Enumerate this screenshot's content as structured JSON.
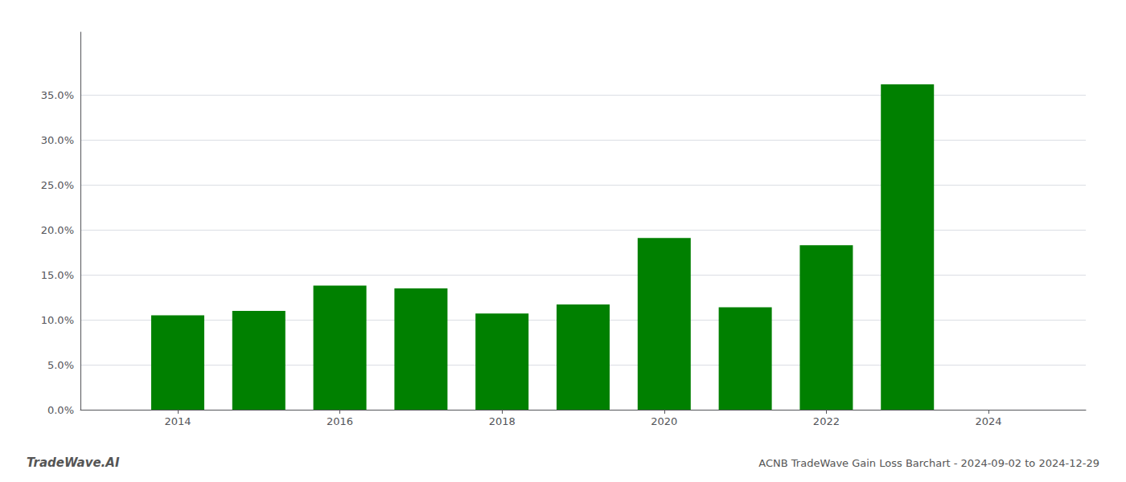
{
  "chart_data": {
    "type": "bar",
    "title": "ACNB TradeWave Gain Loss Barchart - 2024-09-02 to 2024-12-29",
    "annotations": [
      "TradeWave.AI"
    ],
    "x": [
      2014,
      2015,
      2016,
      2017,
      2018,
      2019,
      2020,
      2021,
      2022,
      2023
    ],
    "values": [
      0.105,
      0.11,
      0.138,
      0.135,
      0.107,
      0.117,
      0.191,
      0.114,
      0.183,
      0.362
    ],
    "color": "#008000",
    "xlim": [
      2012.8,
      2025.2
    ],
    "xticks": [
      2014,
      2016,
      2018,
      2020,
      2022,
      2024
    ],
    "ylim": [
      0.0,
      0.42
    ],
    "yticks": [
      {
        "value": 0.0,
        "label": "0.0%"
      },
      {
        "value": 0.05,
        "label": "5.0%"
      },
      {
        "value": 0.1,
        "label": "10.0%"
      },
      {
        "value": 0.15,
        "label": "15.0%"
      },
      {
        "value": 0.2,
        "label": "20.0%"
      },
      {
        "value": 0.25,
        "label": "25.0%"
      },
      {
        "value": 0.3,
        "label": "30.0%"
      },
      {
        "value": 0.35,
        "label": "35.0%"
      }
    ],
    "grid": true
  }
}
